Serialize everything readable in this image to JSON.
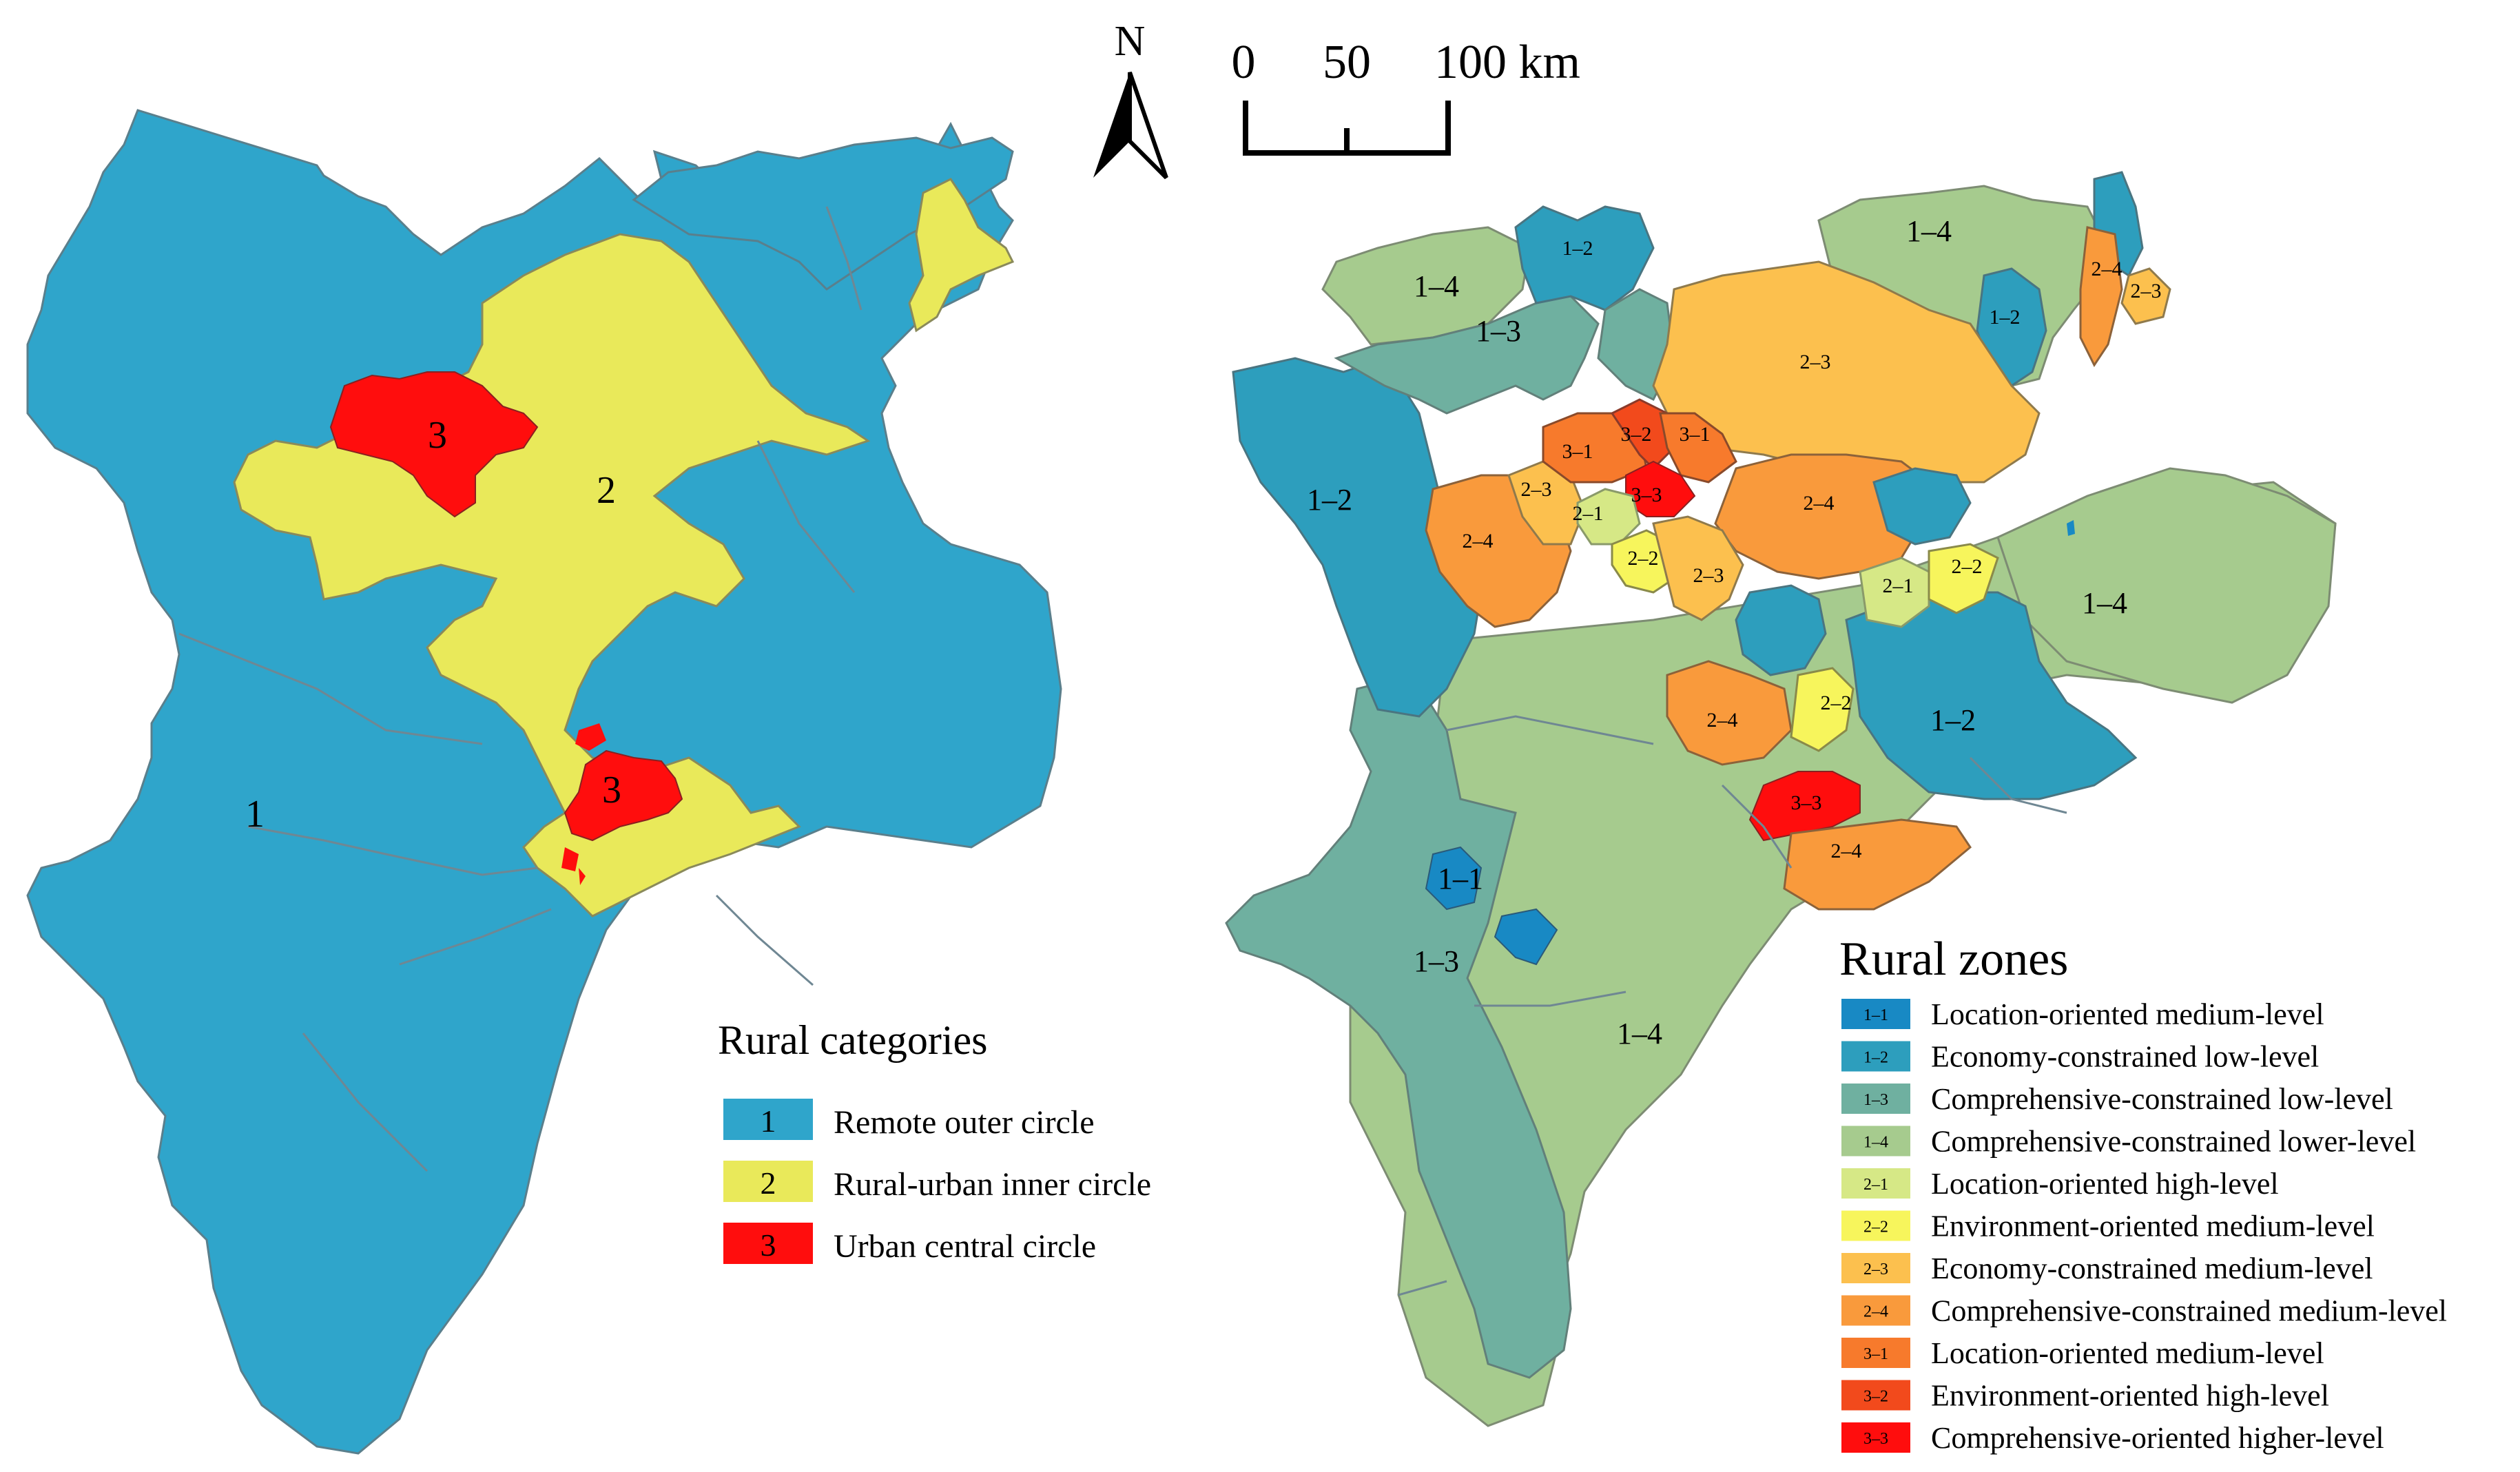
{
  "north_arrow": {
    "label": "N"
  },
  "scale_bar": {
    "ticks": [
      "0",
      "50",
      "100 km"
    ]
  },
  "left_map": {
    "colors": {
      "1": "#2fa5cb",
      "2": "#e9e95a",
      "3": "#ff0d0d"
    },
    "region_labels": [
      "3",
      "2",
      "3",
      "1"
    ],
    "legend": {
      "title": "Rural categories",
      "items": [
        {
          "code": "1",
          "label": "Remote outer circle",
          "color": "#2fa5cb"
        },
        {
          "code": "2",
          "label": "Rural-urban inner circle",
          "color": "#e9e95a"
        },
        {
          "code": "3",
          "label": "Urban central circle",
          "color": "#ff0d0d"
        }
      ]
    }
  },
  "right_map": {
    "region_labels": [
      "1–2",
      "1–4",
      "1–3",
      "1–4",
      "1–2",
      "2–4",
      "2–3",
      "2–3",
      "3–1",
      "3–2",
      "3–1",
      "2–3",
      "2–1",
      "3–3",
      "1–2",
      "2–4",
      "2–4",
      "2–2",
      "2–3",
      "2–1",
      "2–2",
      "1–4",
      "2–4",
      "2–2",
      "1–2",
      "3–3",
      "2–4",
      "1–1",
      "1–3",
      "1–4"
    ],
    "legend": {
      "title": "Rural zones",
      "items": [
        {
          "code": "1–1",
          "label": "Location-oriented medium-level",
          "color": "#1889c4"
        },
        {
          "code": "1–2",
          "label": "Economy-constrained low-level",
          "color": "#2d9ebd"
        },
        {
          "code": "1–3",
          "label": "Comprehensive-constrained low-level",
          "color": "#6fb0a0"
        },
        {
          "code": "1–4",
          "label": "Comprehensive-constrained lower-level",
          "color": "#a6cb8e"
        },
        {
          "code": "2–1",
          "label": "Location-oriented high-level",
          "color": "#d6e886"
        },
        {
          "code": "2–2",
          "label": "Environment-oriented medium-level",
          "color": "#f7f55c"
        },
        {
          "code": "2–3",
          "label": "Economy-constrained medium-level",
          "color": "#fcc04e"
        },
        {
          "code": "2–4",
          "label": "Comprehensive-constrained medium-level",
          "color": "#f99a3c"
        },
        {
          "code": "3–1",
          "label": "Location-oriented medium-level",
          "color": "#f77a2c"
        },
        {
          "code": "3–2",
          "label": "Environment-oriented high-level",
          "color": "#f24a1c"
        },
        {
          "code": "3–3",
          "label": "Comprehensive-oriented higher-level",
          "color": "#ff0d0d"
        }
      ]
    }
  }
}
